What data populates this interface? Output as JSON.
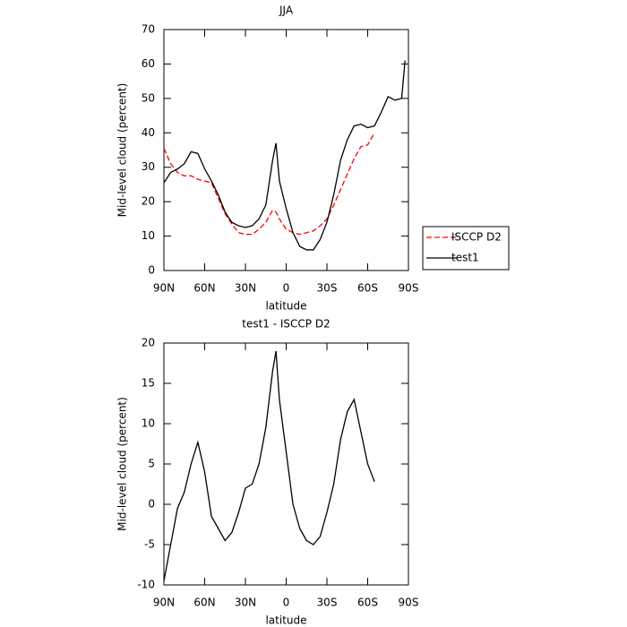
{
  "chart_data": [
    {
      "type": "line",
      "title": "JJA",
      "x_label": "latitude",
      "y_label": "Mid-level cloud (percent)",
      "x": [
        90,
        85,
        80,
        75,
        70,
        65,
        60,
        55,
        50,
        45,
        40,
        35,
        30,
        25,
        20,
        15,
        10,
        7.5,
        5,
        0,
        -5,
        -10,
        -15,
        -20,
        -25,
        -30,
        -35,
        -40,
        -45,
        -50,
        -55,
        -60,
        -65,
        -70,
        -75,
        -80,
        -85,
        -87.5
      ],
      "series": [
        {
          "name": "ISCCP D2",
          "color": "#ff0000",
          "linestyle": "dashed",
          "values": [
            35.5,
            31,
            28.5,
            27.5,
            27.5,
            26.5,
            26,
            25.5,
            21,
            16.5,
            13.5,
            11,
            10.5,
            10.5,
            12,
            14,
            17.5,
            17,
            15,
            12,
            11,
            10.5,
            11,
            11.5,
            13,
            15,
            19,
            23.5,
            28,
            32.5,
            36,
            36.5,
            40,
            null,
            null,
            null,
            null,
            null
          ]
        },
        {
          "name": "test1",
          "color": "#000000",
          "linestyle": "solid",
          "values": [
            25.5,
            28.5,
            29.5,
            31,
            34.5,
            34,
            29.5,
            26,
            22,
            17,
            14,
            13,
            12.5,
            13,
            15,
            19,
            32,
            37,
            26,
            18,
            11,
            7,
            6,
            6,
            9,
            14,
            22,
            32,
            38,
            42,
            42.5,
            41.5,
            42,
            46,
            50.5,
            49.5,
            50,
            61
          ]
        }
      ],
      "xlim": [
        90,
        -90
      ],
      "xticks": [
        {
          "value": 90,
          "label": "90N"
        },
        {
          "value": 60,
          "label": "60N"
        },
        {
          "value": 30,
          "label": "30N"
        },
        0,
        {
          "value": -30,
          "label": "30S"
        },
        {
          "value": -60,
          "label": "60S"
        },
        {
          "value": -90,
          "label": "90S"
        }
      ],
      "ylim": [
        0,
        70
      ],
      "yticks": [
        0,
        10,
        20,
        30,
        40,
        50,
        60,
        70
      ],
      "legend": "right"
    },
    {
      "type": "line",
      "title": "test1 - ISCCP D2",
      "x_label": "latitude",
      "y_label": "Mid-level cloud (percent)",
      "x": [
        90,
        85,
        80,
        75,
        70,
        65,
        60,
        55,
        50,
        45,
        40,
        35,
        30,
        25,
        20,
        15,
        10,
        7.5,
        5,
        0,
        -5,
        -10,
        -15,
        -20,
        -25,
        -30,
        -35,
        -40,
        -45,
        -50,
        -55,
        -60,
        -65
      ],
      "series": [
        {
          "color": "#000000",
          "linestyle": "solid",
          "values": [
            -9.5,
            -5,
            -0.5,
            1.5,
            5,
            7.7,
            4,
            -1.5,
            -3,
            -4.5,
            -3.5,
            -1,
            2,
            2.5,
            5,
            9.5,
            16.5,
            19,
            13,
            6.5,
            0,
            -3,
            -4.5,
            -5,
            -4,
            -1,
            2.5,
            8,
            11.5,
            13,
            9,
            5,
            2.8
          ]
        }
      ],
      "xlim": [
        90,
        -90
      ],
      "xticks": [
        {
          "value": 90,
          "label": "90N"
        },
        {
          "value": 60,
          "label": "60N"
        },
        {
          "value": 30,
          "label": "30N"
        },
        0,
        {
          "value": -30,
          "label": "30S"
        },
        {
          "value": -60,
          "label": "60S"
        },
        {
          "value": -90,
          "label": "90S"
        }
      ],
      "ylim": [
        -10,
        20
      ],
      "yticks": [
        -10,
        -5,
        0,
        5,
        10,
        15,
        20
      ]
    }
  ]
}
